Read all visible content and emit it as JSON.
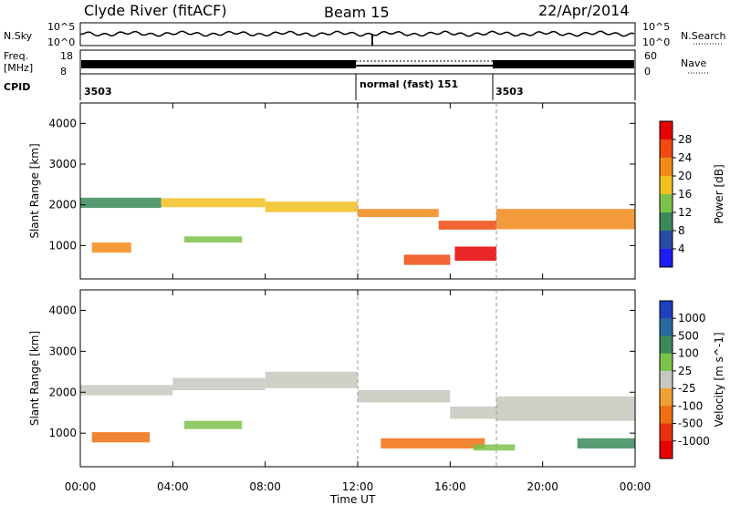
{
  "header": {
    "station": "Clyde River (fitACF)",
    "beam": "Beam 15",
    "date": "22/Apr/2014"
  },
  "status_panel": {
    "nsky_label": "N.Sky",
    "nsky_ticks": [
      "10^5",
      "10^0"
    ],
    "nsearch_label": "N.Search",
    "nsearch_ticks": [
      "10^5",
      "10^0"
    ],
    "freq_label_1": "Freq.",
    "freq_label_2": "[MHz]",
    "freq_ticks": [
      "18",
      "8"
    ],
    "nave_ticks": [
      "60",
      "0"
    ],
    "nave_label": "Nave",
    "cpid_label": "CPID",
    "cpid_segments": [
      "3503",
      "normal (fast) 151",
      "3503"
    ]
  },
  "chart_data": [
    {
      "type": "heatmap",
      "title": "",
      "xlabel": "",
      "ylabel": "Slant Range [km]",
      "xlim": [
        0,
        24
      ],
      "ylim": [
        180,
        4500
      ],
      "x_ticks": [
        "00:00",
        "04:00",
        "08:00",
        "12:00",
        "16:00",
        "20:00",
        "00:00"
      ],
      "y_ticks": [
        1000,
        2000,
        3000,
        4000
      ],
      "colorbar": {
        "label": "Power [dB]",
        "ticks": [
          "4",
          "8",
          "12",
          "16",
          "20",
          "24",
          "28"
        ],
        "colors": [
          "#1d1df5",
          "#2a4aa8",
          "#3a8a5a",
          "#7cc24a",
          "#f0c020",
          "#f28a1a",
          "#f04a10",
          "#e80000"
        ]
      },
      "echo_bands": [
        {
          "x_start": 0.0,
          "x_end": 3.5,
          "y_center": 2050,
          "y_width": 250,
          "value": 8
        },
        {
          "x_start": 3.5,
          "x_end": 8.0,
          "y_center": 2050,
          "y_width": 220,
          "value": 16
        },
        {
          "x_start": 8.0,
          "x_end": 12.0,
          "y_center": 1950,
          "y_width": 260,
          "value": 16
        },
        {
          "x_start": 12.0,
          "x_end": 15.5,
          "y_center": 1800,
          "y_width": 200,
          "value": 20
        },
        {
          "x_start": 15.5,
          "x_end": 18.0,
          "y_center": 1500,
          "y_width": 220,
          "value": 24
        },
        {
          "x_start": 18.0,
          "x_end": 24.0,
          "y_center": 1650,
          "y_width": 500,
          "value": 20
        },
        {
          "x_start": 16.2,
          "x_end": 18.0,
          "y_center": 800,
          "y_width": 350,
          "value": 28
        },
        {
          "x_start": 14.0,
          "x_end": 16.0,
          "y_center": 650,
          "y_width": 250,
          "value": 24
        },
        {
          "x_start": 4.5,
          "x_end": 7.0,
          "y_center": 1150,
          "y_width": 150,
          "value": 12
        },
        {
          "x_start": 0.5,
          "x_end": 2.2,
          "y_center": 950,
          "y_width": 250,
          "value": 20
        }
      ]
    },
    {
      "type": "heatmap",
      "title": "",
      "xlabel": "Time UT",
      "ylabel": "Slant Range [km]",
      "xlim": [
        0,
        24
      ],
      "ylim": [
        180,
        4500
      ],
      "x_ticks": [
        "00:00",
        "04:00",
        "08:00",
        "12:00",
        "16:00",
        "20:00",
        "00:00"
      ],
      "y_ticks": [
        1000,
        2000,
        3000,
        4000
      ],
      "colorbar": {
        "label": "Velocity [m s^-1]",
        "ticks": [
          "1000",
          "500",
          "100",
          "25",
          "-25",
          "-100",
          "-500",
          "-1000"
        ],
        "colors": [
          "#2040c0",
          "#2a6aa0",
          "#3a8a5a",
          "#7cc24a",
          "#c8c8c0",
          "#f0a030",
          "#f07010",
          "#e83010",
          "#e80000"
        ]
      },
      "echo_bands": [
        {
          "x_start": 0.0,
          "x_end": 4.0,
          "y_center": 2050,
          "y_width": 250,
          "value": 0
        },
        {
          "x_start": 4.0,
          "x_end": 8.0,
          "y_center": 2200,
          "y_width": 300,
          "value": 0
        },
        {
          "x_start": 8.0,
          "x_end": 12.0,
          "y_center": 2300,
          "y_width": 400,
          "value": 0
        },
        {
          "x_start": 12.0,
          "x_end": 16.0,
          "y_center": 1900,
          "y_width": 300,
          "value": 0
        },
        {
          "x_start": 16.0,
          "x_end": 18.0,
          "y_center": 1500,
          "y_width": 300,
          "value": 0
        },
        {
          "x_start": 18.0,
          "x_end": 24.0,
          "y_center": 1600,
          "y_width": 600,
          "value": 0
        },
        {
          "x_start": 13.0,
          "x_end": 17.5,
          "y_center": 750,
          "y_width": 250,
          "value": -300
        },
        {
          "x_start": 0.5,
          "x_end": 3.0,
          "y_center": 900,
          "y_width": 250,
          "value": -300
        },
        {
          "x_start": 4.5,
          "x_end": 7.0,
          "y_center": 1200,
          "y_width": 200,
          "value": 60
        },
        {
          "x_start": 17.0,
          "x_end": 18.8,
          "y_center": 650,
          "y_width": 150,
          "value": 60
        },
        {
          "x_start": 21.5,
          "x_end": 24.0,
          "y_center": 750,
          "y_width": 250,
          "value": 150
        }
      ]
    }
  ]
}
